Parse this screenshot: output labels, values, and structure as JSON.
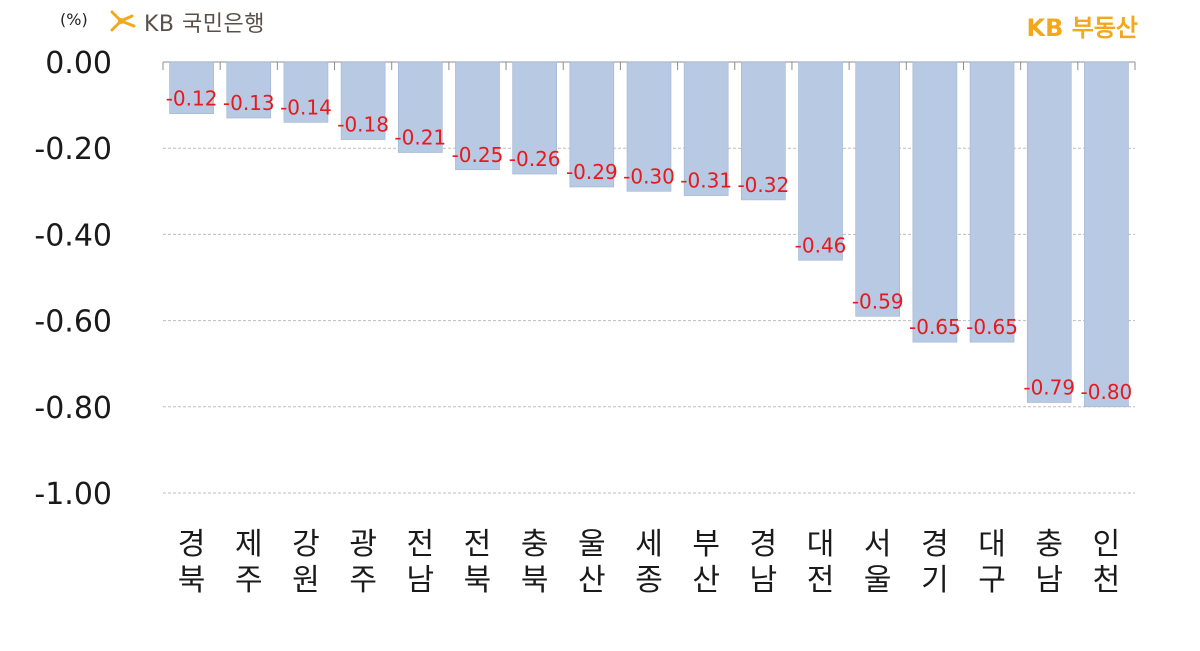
{
  "header": {
    "unit_label": "(%)",
    "bank_logo_text": "KB 국민은행",
    "realty_logo_text": "KB 부동산"
  },
  "colors": {
    "bar": "#b7c9e3",
    "value_label": "#e8191c",
    "grid": "#bdbdbd",
    "axis_text": "#1a1a1a",
    "brand_yellow": "#f3a81b",
    "brand_gray": "#5a5049"
  },
  "chart_data": {
    "type": "bar",
    "title": "",
    "xlabel": "",
    "ylabel": "",
    "ylim": [
      -1.0,
      0.0
    ],
    "yticks": [
      "0.00",
      "-0.20",
      "-0.40",
      "-0.60",
      "-0.80",
      "-1.00"
    ],
    "categories": [
      "경북",
      "제주",
      "강원",
      "광주",
      "전남",
      "전북",
      "충북",
      "울산",
      "세종",
      "부산",
      "경남",
      "대전",
      "서울",
      "경기",
      "대구",
      "충남",
      "인천"
    ],
    "values": [
      -0.12,
      -0.13,
      -0.14,
      -0.18,
      -0.21,
      -0.25,
      -0.26,
      -0.29,
      -0.3,
      -0.31,
      -0.32,
      -0.46,
      -0.59,
      -0.65,
      -0.65,
      -0.79,
      -0.8
    ],
    "value_labels": [
      "-0.12",
      "-0.13",
      "-0.14",
      "-0.18",
      "-0.21",
      "-0.25",
      "-0.26",
      "-0.29",
      "-0.30",
      "-0.31",
      "-0.32",
      "-0.46",
      "-0.59",
      "-0.65",
      "-0.65",
      "-0.79",
      "-0.80"
    ],
    "grid": true,
    "legend": "none"
  }
}
